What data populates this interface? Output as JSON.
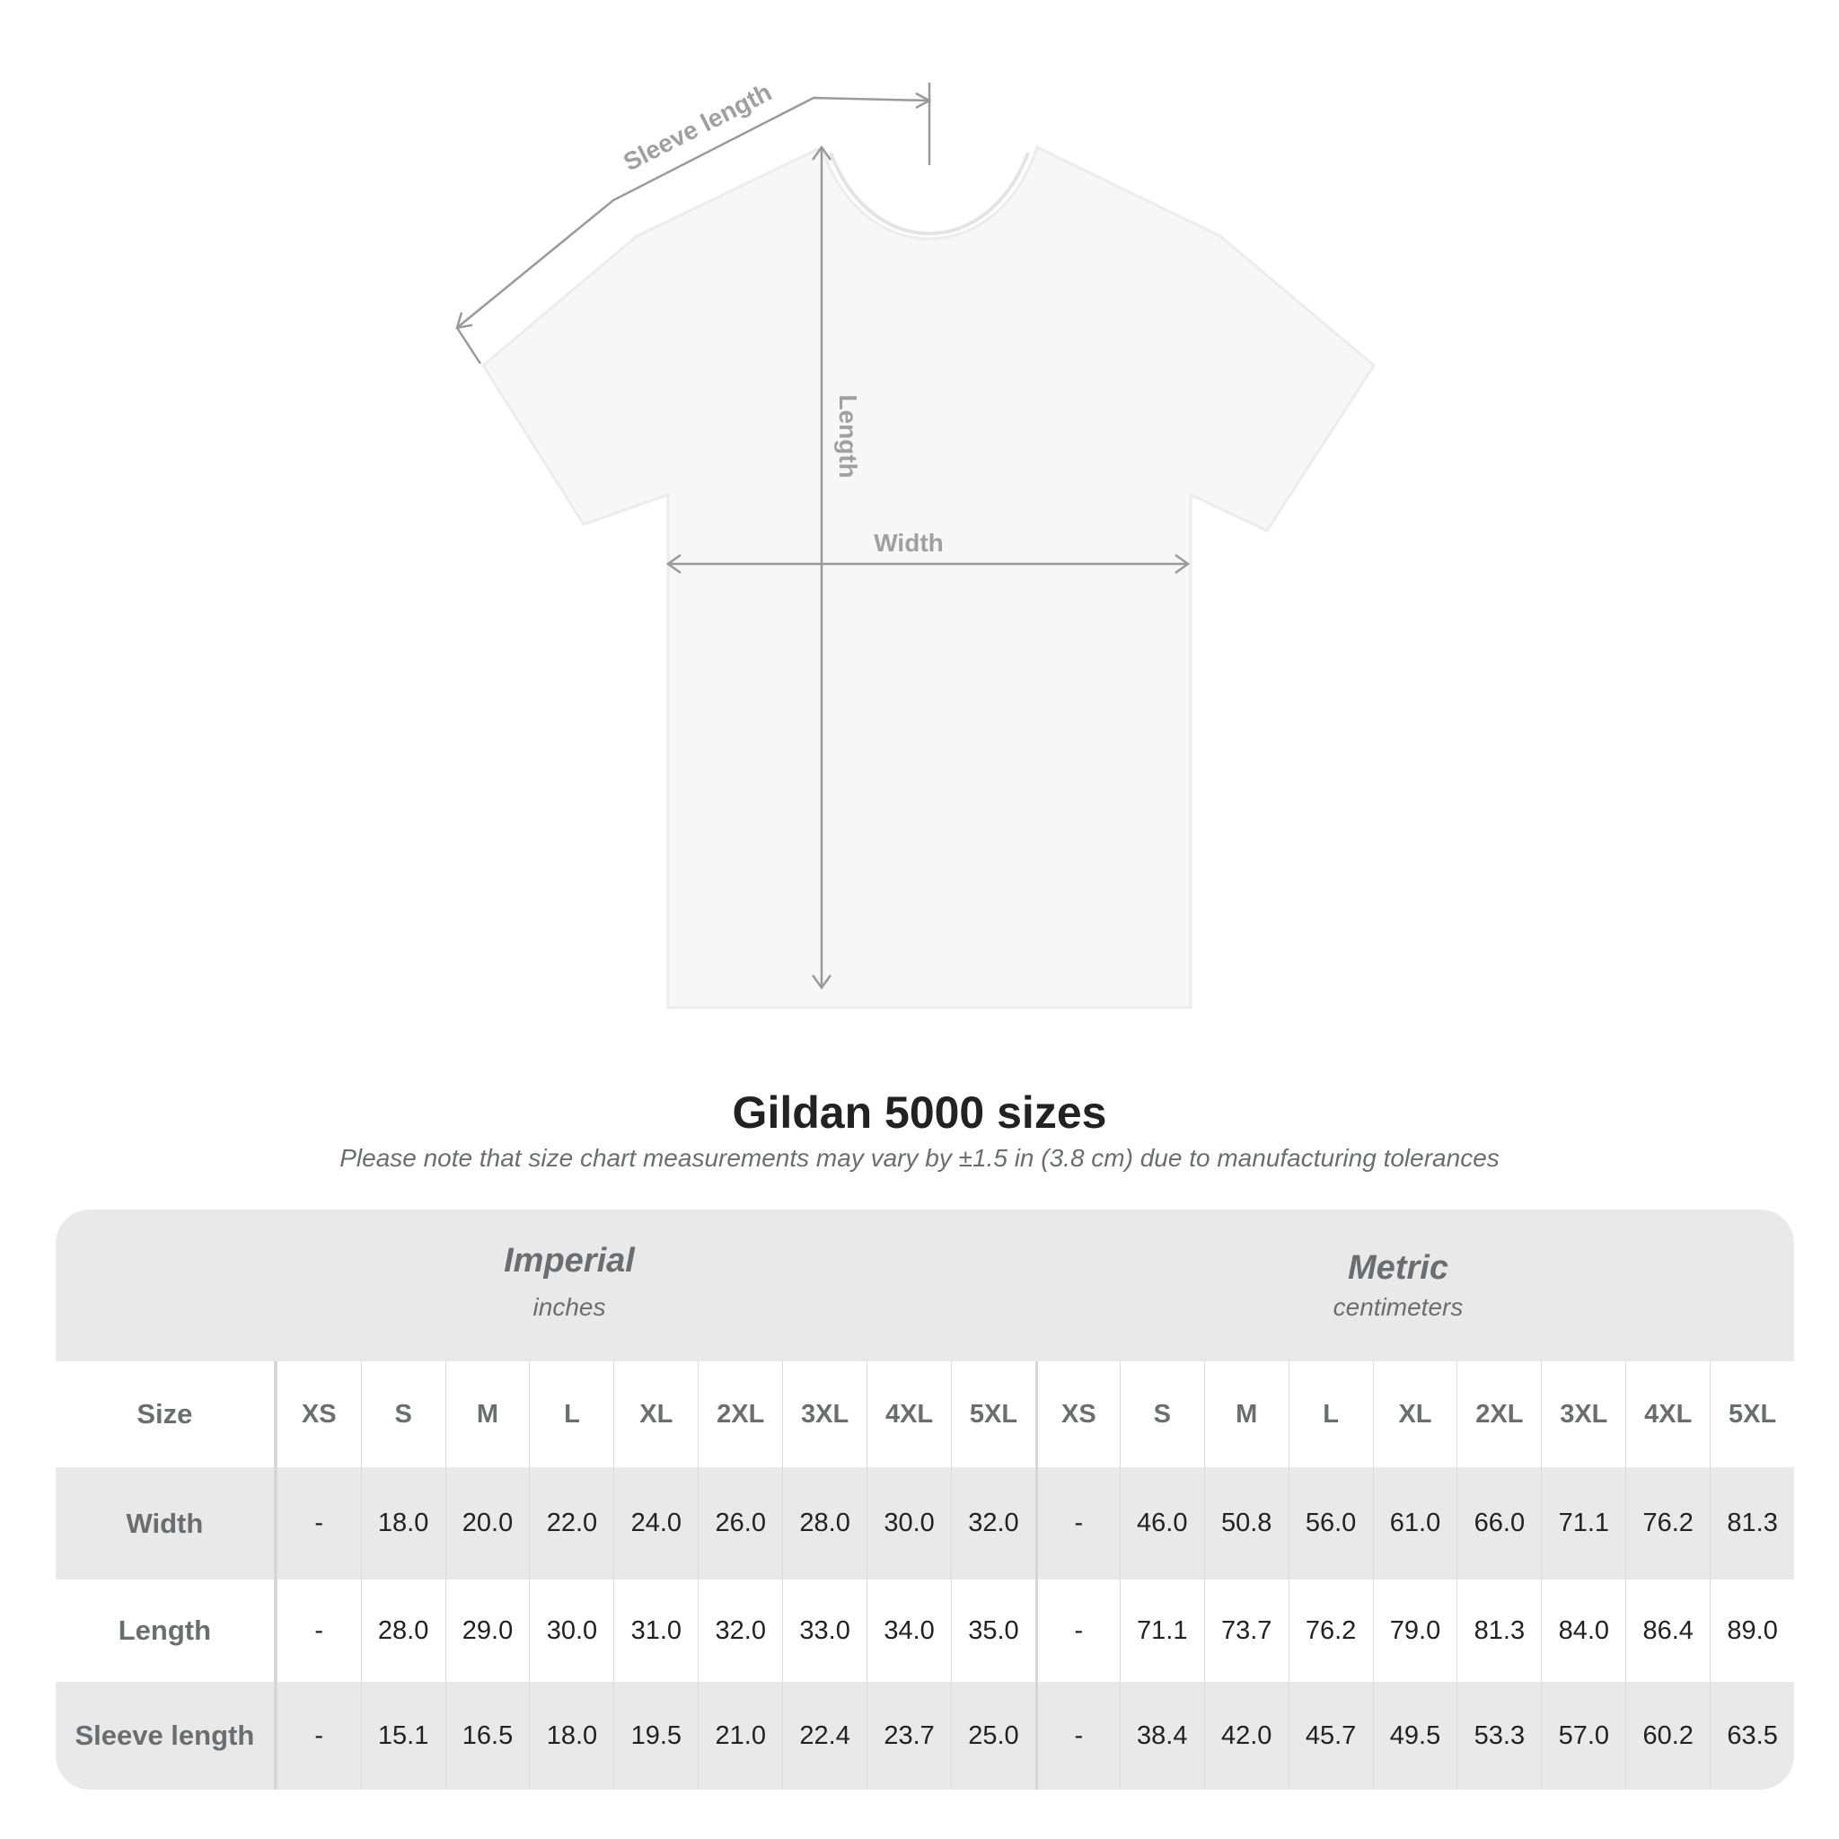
{
  "diagram": {
    "sleeve_label": "Sleeve length",
    "length_label": "Length",
    "width_label": "Width",
    "arrow_color": "#9a9a9a"
  },
  "title": "Gildan 5000 sizes",
  "subtitle": "Please note that size chart measurements may vary by ±1.5 in (3.8 cm) due to manufacturing tolerances",
  "table": {
    "imperial": {
      "name": "Imperial",
      "unit": "inches"
    },
    "metric": {
      "name": "Metric",
      "unit": "centimeters"
    },
    "size_label": "Size",
    "sizes": [
      "XS",
      "S",
      "M",
      "L",
      "XL",
      "2XL",
      "3XL",
      "4XL",
      "5XL"
    ],
    "rows": [
      {
        "label": "Width",
        "imperial": [
          "-",
          "18.0",
          "20.0",
          "22.0",
          "24.0",
          "26.0",
          "28.0",
          "30.0",
          "32.0"
        ],
        "metric": [
          "-",
          "46.0",
          "50.8",
          "56.0",
          "61.0",
          "66.0",
          "71.1",
          "76.2",
          "81.3"
        ]
      },
      {
        "label": "Length",
        "imperial": [
          "-",
          "28.0",
          "29.0",
          "30.0",
          "31.0",
          "32.0",
          "33.0",
          "34.0",
          "35.0"
        ],
        "metric": [
          "-",
          "71.1",
          "73.7",
          "76.2",
          "79.0",
          "81.3",
          "84.0",
          "86.4",
          "89.0"
        ]
      },
      {
        "label": "Sleeve length",
        "imperial": [
          "-",
          "15.1",
          "16.5",
          "18.0",
          "19.5",
          "21.0",
          "22.4",
          "23.7",
          "25.0"
        ],
        "metric": [
          "-",
          "38.4",
          "42.0",
          "45.7",
          "49.5",
          "53.3",
          "57.0",
          "60.2",
          "63.5"
        ]
      }
    ]
  }
}
